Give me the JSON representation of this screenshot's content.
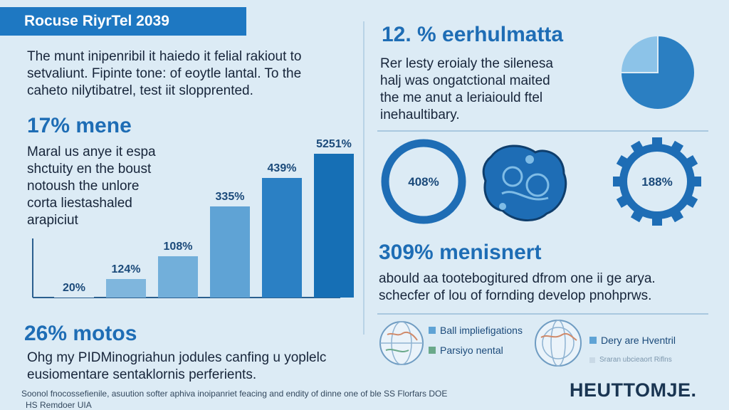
{
  "header": {
    "title": "Rocuse RiyrTel 2039"
  },
  "intro": {
    "text": "The munt inipenribil it haiedo it felial rakiout to\nsetvaliunt. Fipinte tone: of eoytle lantal. To the\ncaheto nilytibatrel, test iit slopprented."
  },
  "left_section": {
    "headline": "17% mene",
    "text": "Maral us anye it espa\nshctuity en the boust\nnotoush the unlore\ncorta liestashaled\narapiciut"
  },
  "chart_data": {
    "type": "bar",
    "categories": [
      "",
      "",
      "",
      "",
      "",
      ""
    ],
    "value_labels": [
      "20%",
      "124%",
      "108%",
      "335%",
      "439%",
      "5251%"
    ],
    "values": [
      20,
      124,
      108,
      335,
      439,
      5251
    ],
    "title": "",
    "xlabel": "",
    "ylabel": "",
    "grid": false,
    "colors": [
      "#dcebf5",
      "#7fb6dd",
      "#72afda",
      "#5fa3d5",
      "#2b80c4",
      "#166fb5"
    ]
  },
  "bottom_left": {
    "headline": "26% motos",
    "text": "Ohg my PIDMinogriahun jodules canfing u yoplelc\neusiomentare sentaklornis perferients."
  },
  "right_top": {
    "headline": "12. % eerhulmatta",
    "text": "Rer lesty eroialy the silenesa\nhalj was ongatctional maited\nthe me anut a leriaiould ftel\ninehaultibary.",
    "pie": {
      "values": [
        75,
        25
      ],
      "colors": [
        "#2b7fc2",
        "#8cc3e8"
      ]
    }
  },
  "rings": {
    "left_label": "408%",
    "right_label": "188%",
    "colors": {
      "ring": "#1e6db5",
      "blob": "#1e6db5",
      "blob_accent": "#7fbce6"
    }
  },
  "right_mid": {
    "headline": "309% menisnert",
    "text": "abould aa tootebogitured dfrom one ii ge arya.\nschecfer of lou of fornding develop pnohprws."
  },
  "legend": {
    "items": [
      {
        "label": "Ball impliefigations",
        "color": "#5fa3d5"
      },
      {
        "label": "Parsiyo nental",
        "color": "#6aa98a"
      },
      {
        "label": "Dery are Hventril",
        "color": "#5fa3d5"
      }
    ],
    "faint_label": "Sraran ubcieaort Riflns"
  },
  "footer": {
    "note_line1": "Soonol fnocossefienile, asuution softer aphiva inoipanriet feacing and endity of dinne one of ble SS Florfars DOE",
    "note_line2": "HS Remdoer UIA",
    "brand": "HEUTTOMJE."
  }
}
